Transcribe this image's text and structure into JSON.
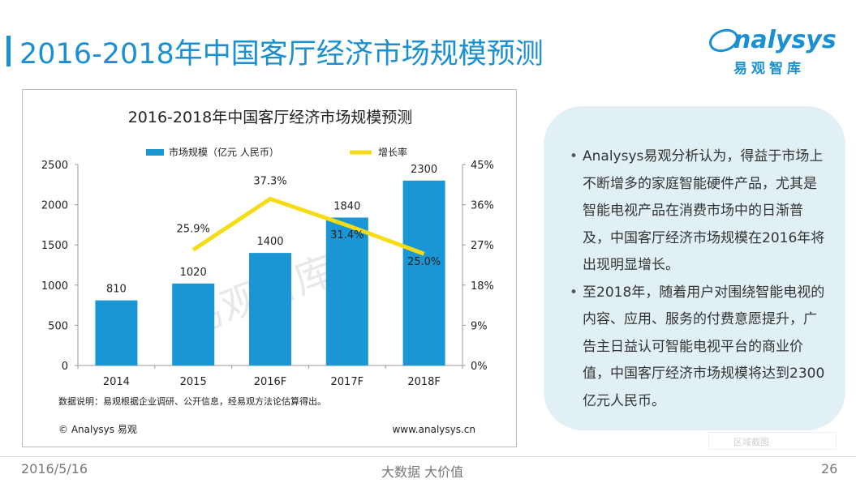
{
  "slide": {
    "title": "2016-2018年中国客厅经济市场规模预测",
    "logo_text": "nalysys",
    "logo_subtitle": "易观智库",
    "footer_date": "2016/5/16",
    "footer_center": "大数据   大价值",
    "page_number": "26",
    "capture_label": "区域截图"
  },
  "notes": [
    "Analysys易观分析认为，得益于市场上不断增多的家庭智能硬件产品，尤其是智能电视产品在消费市场中的日渐普及，中国客厅经济市场规模在2016年将出现明显增长。",
    "至2018年，随着用户对围绕智能电视的内容、应用、服务的付费意愿提升，广告主日益认可智能电视平台的商业价值，中国客厅经济市场规模将达到2300亿元人民币。"
  ],
  "chart_data": {
    "type": "bar",
    "title": "2016-2018年中国客厅经济市场规模预测",
    "categories": [
      "2014",
      "2015",
      "2016F",
      "2017F",
      "2018F"
    ],
    "series": [
      {
        "name": "市场规模（亿元 人民币）",
        "type": "bar",
        "axis": "left",
        "values": [
          810,
          1020,
          1400,
          1840,
          2300
        ],
        "labels": [
          "810",
          "1020",
          "1400",
          "1840",
          "2300"
        ],
        "color": "#1a96d4"
      },
      {
        "name": "增长率",
        "type": "line",
        "axis": "right",
        "values": [
          null,
          25.9,
          37.3,
          31.4,
          25.0
        ],
        "labels": [
          "",
          "25.9%",
          "37.3%",
          "31.4%",
          "25.0%"
        ],
        "color": "#f5dc14"
      }
    ],
    "y_left": {
      "min": 0,
      "max": 2500,
      "ticks": [
        "0",
        "500",
        "1000",
        "1500",
        "2000",
        "2500"
      ]
    },
    "y_right": {
      "min": 0,
      "max": 45,
      "ticks": [
        "0%",
        "9%",
        "18%",
        "27%",
        "36%",
        "45%"
      ]
    },
    "legend_position": "top",
    "source_note": "数据说明：易观根据企业调研、公开信息，经易观方法论估算得出。",
    "copyright": "© Analysys 易观",
    "website": "www.analysys.cn",
    "watermark": "易观智库",
    "colors": {
      "text": "#222222",
      "axis": "#999999"
    }
  }
}
